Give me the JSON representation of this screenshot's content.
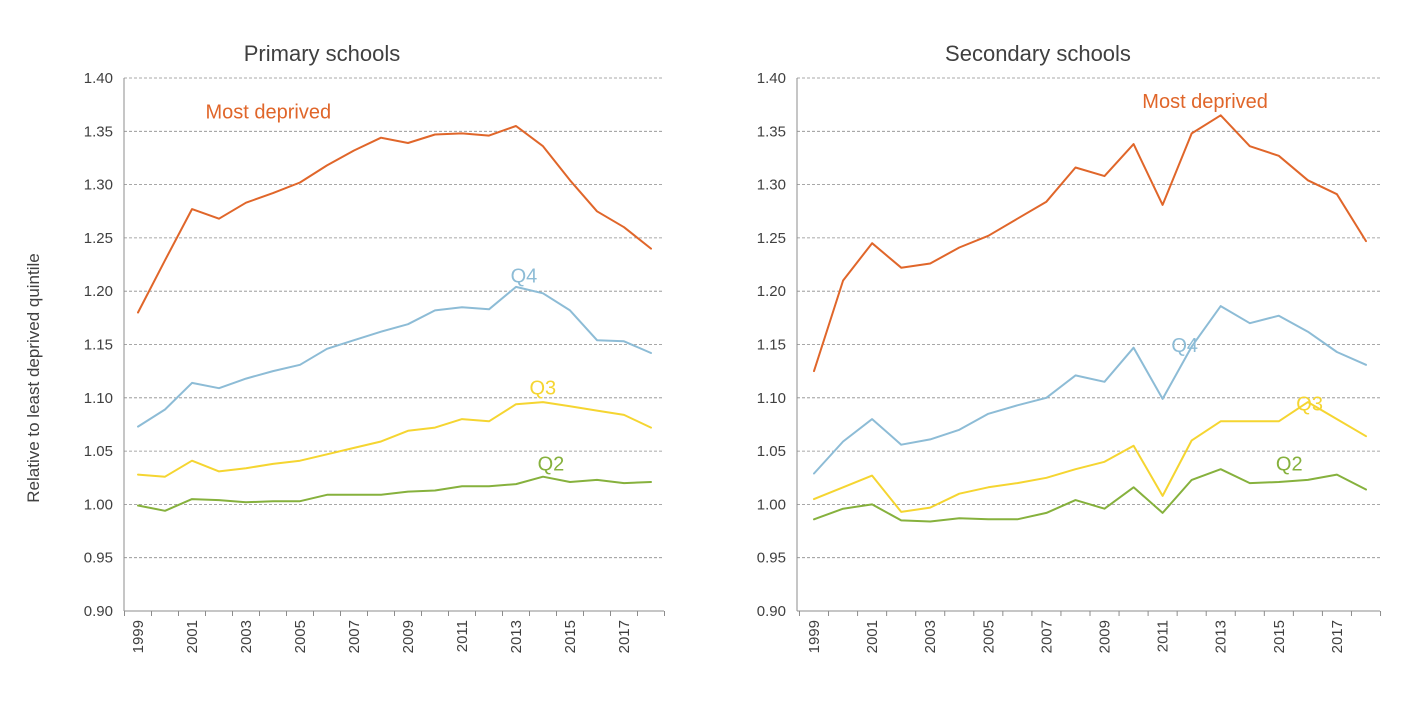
{
  "ylabel": "Relative to least deprived quintile",
  "colors": {
    "most_deprived": "#e0662a",
    "q4": "#8dbcd6",
    "q3": "#f5d531",
    "q2": "#86b13d",
    "text": "#404040",
    "grid": "#8c8c8c"
  },
  "chart_data": [
    {
      "type": "line",
      "title": "Primary schools",
      "xlabel": "",
      "ylabel": "Relative to least deprived quintile",
      "ylim": [
        0.9,
        1.4
      ],
      "yticks": [
        "0.90",
        "0.95",
        "1.00",
        "1.05",
        "1.10",
        "1.15",
        "1.20",
        "1.25",
        "1.30",
        "1.35",
        "1.40"
      ],
      "x": [
        1999,
        2000,
        2001,
        2002,
        2003,
        2004,
        2005,
        2006,
        2007,
        2008,
        2009,
        2010,
        2011,
        2012,
        2013,
        2014,
        2015,
        2016,
        2017,
        2018
      ],
      "xticks": [
        "1999",
        "2001",
        "2003",
        "2005",
        "2007",
        "2009",
        "2011",
        "2013",
        "2015",
        "2017"
      ],
      "grid": true,
      "series": [
        {
          "name": "Most deprived",
          "color_key": "most_deprived",
          "label_x": 2001.5,
          "label_y": 1.362,
          "values": [
            1.18,
            1.229,
            1.277,
            1.268,
            1.283,
            1.292,
            1.302,
            1.318,
            1.332,
            1.344,
            1.339,
            1.347,
            1.348,
            1.346,
            1.355,
            1.336,
            1.304,
            1.275,
            1.26,
            1.24
          ]
        },
        {
          "name": "Q4",
          "color_key": "q4",
          "label_x": 2012.8,
          "label_y": 1.208,
          "values": [
            1.073,
            1.089,
            1.114,
            1.109,
            1.118,
            1.125,
            1.131,
            1.146,
            1.154,
            1.162,
            1.169,
            1.182,
            1.185,
            1.183,
            1.204,
            1.198,
            1.182,
            1.154,
            1.153,
            1.142
          ]
        },
        {
          "name": "Q3",
          "color_key": "q3",
          "label_x": 2013.5,
          "label_y": 1.103,
          "values": [
            1.028,
            1.026,
            1.041,
            1.031,
            1.034,
            1.038,
            1.041,
            1.047,
            1.053,
            1.059,
            1.069,
            1.072,
            1.08,
            1.078,
            1.094,
            1.096,
            1.092,
            1.088,
            1.084,
            1.072
          ]
        },
        {
          "name": "Q2",
          "color_key": "q2",
          "label_x": 2013.8,
          "label_y": 1.032,
          "values": [
            0.999,
            0.994,
            1.005,
            1.004,
            1.002,
            1.003,
            1.003,
            1.009,
            1.009,
            1.009,
            1.012,
            1.013,
            1.017,
            1.017,
            1.019,
            1.026,
            1.021,
            1.023,
            1.02,
            1.021
          ]
        }
      ]
    },
    {
      "type": "line",
      "title": "Secondary schools",
      "xlabel": "",
      "ylabel": "",
      "ylim": [
        0.9,
        1.4
      ],
      "yticks": [
        "0.90",
        "0.95",
        "1.00",
        "1.05",
        "1.10",
        "1.15",
        "1.20",
        "1.25",
        "1.30",
        "1.35",
        "1.40"
      ],
      "x": [
        1999,
        2000,
        2001,
        2002,
        2003,
        2004,
        2005,
        2006,
        2007,
        2008,
        2009,
        2010,
        2011,
        2012,
        2013,
        2014,
        2015,
        2016,
        2017,
        2018
      ],
      "xticks": [
        "1999",
        "2001",
        "2003",
        "2005",
        "2007",
        "2009",
        "2011",
        "2013",
        "2015",
        "2017"
      ],
      "grid": true,
      "series": [
        {
          "name": "Most deprived",
          "color_key": "most_deprived",
          "label_x": 2010.3,
          "label_y": 1.372,
          "values": [
            1.125,
            1.21,
            1.245,
            1.222,
            1.226,
            1.241,
            1.252,
            1.268,
            1.284,
            1.316,
            1.308,
            1.338,
            1.281,
            1.348,
            1.365,
            1.336,
            1.327,
            1.304,
            1.291,
            1.247
          ]
        },
        {
          "name": "Q4",
          "color_key": "q4",
          "label_x": 2011.3,
          "label_y": 1.143,
          "values": [
            1.029,
            1.059,
            1.08,
            1.056,
            1.061,
            1.07,
            1.085,
            1.093,
            1.1,
            1.121,
            1.115,
            1.147,
            1.099,
            1.148,
            1.186,
            1.17,
            1.177,
            1.162,
            1.143,
            1.131
          ]
        },
        {
          "name": "Q3",
          "color_key": "q3",
          "label_x": 2015.6,
          "label_y": 1.088,
          "values": [
            1.005,
            1.016,
            1.027,
            0.993,
            0.997,
            1.01,
            1.016,
            1.02,
            1.025,
            1.033,
            1.04,
            1.055,
            1.008,
            1.06,
            1.078,
            1.078,
            1.078,
            1.096,
            1.08,
            1.064
          ]
        },
        {
          "name": "Q2",
          "color_key": "q2",
          "label_x": 2014.9,
          "label_y": 1.032,
          "values": [
            0.986,
            0.996,
            1.0,
            0.985,
            0.984,
            0.987,
            0.986,
            0.986,
            0.992,
            1.004,
            0.996,
            1.016,
            0.992,
            1.023,
            1.033,
            1.02,
            1.021,
            1.023,
            1.028,
            1.014
          ]
        }
      ]
    }
  ]
}
